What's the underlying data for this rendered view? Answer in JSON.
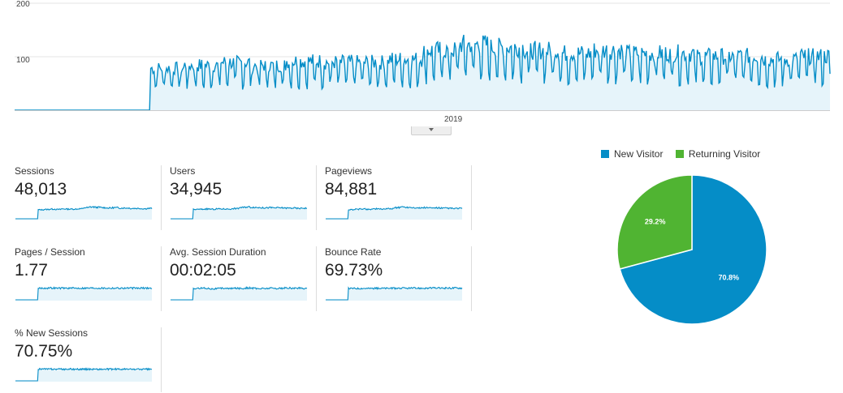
{
  "chart_data": [
    {
      "type": "area",
      "series": [
        {
          "name": "Sessions",
          "y_daily_estimate_by_month": {
            "2018-01": 0,
            "2018-02": 0,
            "2018-03": 0,
            "2018-04": 0,
            "2018-05": 70,
            "2018-06": 75,
            "2018-07": 80,
            "2018-08": 75,
            "2018-09": 82,
            "2018-10": 80,
            "2018-11": 80,
            "2018-12": 85,
            "2019-01": 100,
            "2019-02": 110,
            "2019-03": 105,
            "2019-04": 100,
            "2019-05": 95,
            "2019-06": 100,
            "2019-07": 95,
            "2019-08": 95,
            "2019-09": 90,
            "2019-10": 90,
            "2019-11": 85,
            "2019-12": 90
          }
        }
      ],
      "yticks": [
        "100",
        "200"
      ],
      "ylim": [
        0,
        200
      ],
      "xticks": [
        "2019"
      ],
      "color": "#058dc7",
      "fill": "#e6f4fa",
      "grid": true
    },
    {
      "type": "pie",
      "slices": [
        {
          "label": "New Visitor",
          "value": 70.8,
          "display": "70.8%",
          "color": "#058dc7"
        },
        {
          "label": "Returning Visitor",
          "value": 29.2,
          "display": "29.2%",
          "color": "#50b432"
        }
      ],
      "legend": "top"
    }
  ],
  "metrics": [
    {
      "label": "Sessions",
      "value": "48,013",
      "trend": [
        0,
        0,
        0,
        0,
        70,
        75,
        80,
        75,
        82,
        80,
        80,
        85,
        100,
        110,
        105,
        100,
        95,
        100,
        95,
        95,
        90,
        90,
        85,
        90
      ]
    },
    {
      "label": "Users",
      "value": "34,945",
      "trend": [
        0,
        0,
        0,
        0,
        60,
        62,
        65,
        62,
        66,
        65,
        65,
        70,
        82,
        88,
        85,
        82,
        78,
        80,
        78,
        78,
        75,
        76,
        72,
        75
      ]
    },
    {
      "label": "Pageviews",
      "value": "84,881",
      "trend": [
        0,
        0,
        0,
        0,
        120,
        130,
        140,
        128,
        140,
        135,
        138,
        145,
        170,
        185,
        178,
        170,
        160,
        168,
        160,
        162,
        155,
        155,
        148,
        152
      ]
    },
    {
      "label": "Pages / Session",
      "value": "1.77",
      "trend": [
        0,
        0,
        0,
        0,
        1.75,
        1.78,
        1.8,
        1.76,
        1.78,
        1.75,
        1.76,
        1.77,
        1.78,
        1.8,
        1.78,
        1.77,
        1.76,
        1.78,
        1.76,
        1.77,
        1.76,
        1.75,
        1.76,
        1.77
      ]
    },
    {
      "label": "Avg. Session Duration",
      "value": "00:02:05",
      "trend": [
        0,
        0,
        0,
        0,
        120,
        130,
        125,
        118,
        122,
        128,
        120,
        126,
        124,
        130,
        126,
        120,
        122,
        128,
        125,
        124,
        130,
        126,
        128,
        125
      ]
    },
    {
      "label": "Bounce Rate",
      "value": "69.73%",
      "trend": [
        0,
        0,
        0,
        0,
        68,
        68,
        69,
        68,
        69,
        69,
        69,
        69,
        70,
        70,
        70,
        70,
        70,
        70,
        71,
        71,
        71,
        71,
        72,
        72
      ]
    },
    {
      "label": "% New Sessions",
      "value": "70.75%",
      "trend": [
        0,
        0,
        0,
        0,
        72,
        71,
        71,
        71,
        70,
        71,
        70,
        70,
        71,
        71,
        70,
        70,
        70,
        71,
        70,
        70,
        70,
        70,
        70,
        70
      ]
    }
  ],
  "handle_icon": "chevron-down-icon"
}
